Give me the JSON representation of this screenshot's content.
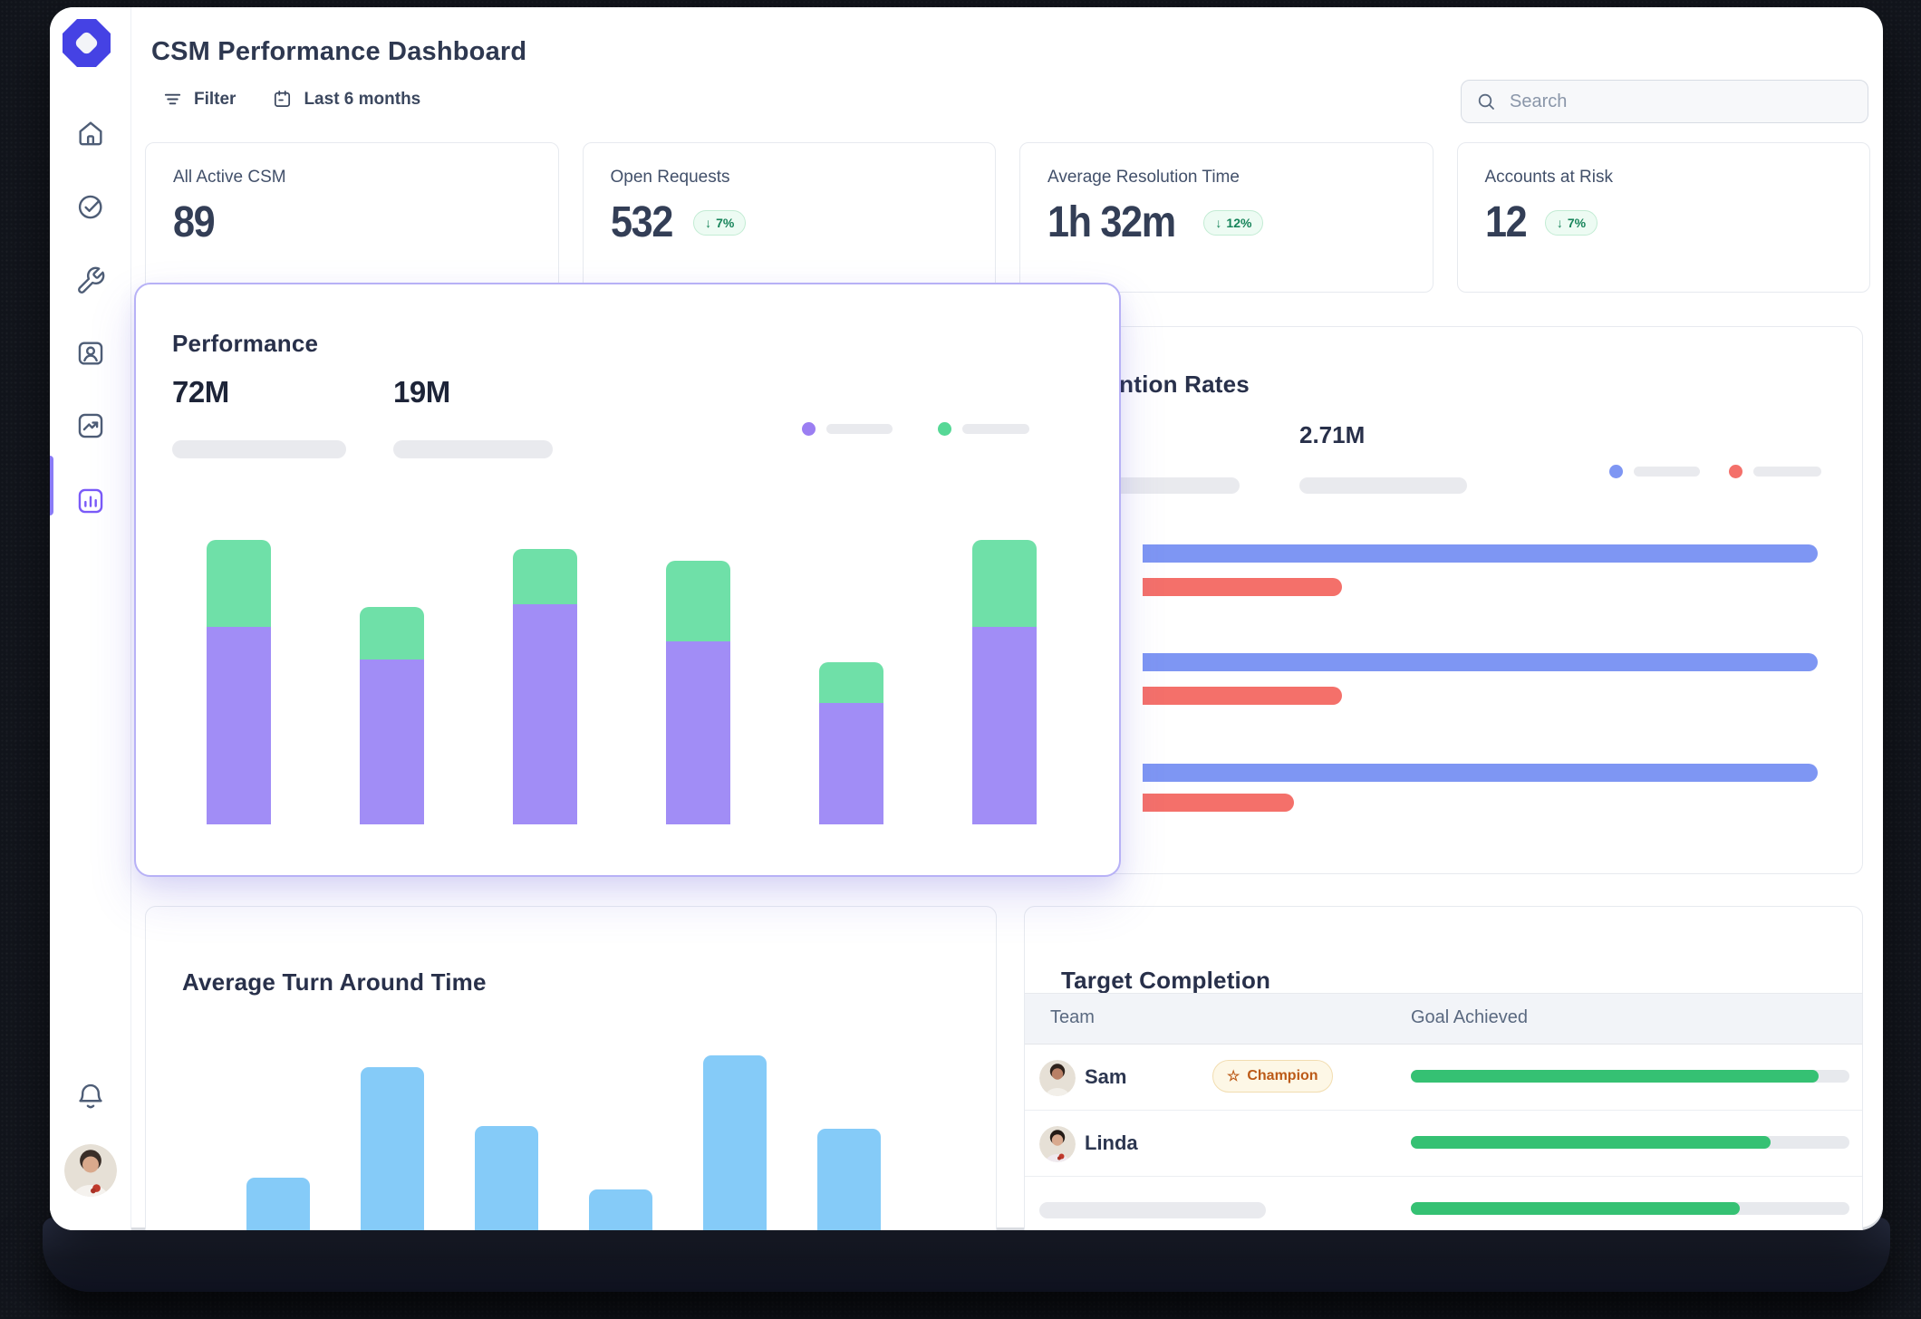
{
  "window_title": "CSM Performance Dashboard",
  "toolbar": {
    "filter": "Filter",
    "date_range": "Last 6 months"
  },
  "search": {
    "placeholder": "Search"
  },
  "kpis": [
    {
      "label": "All Active CSM",
      "value": "89",
      "badge": null
    },
    {
      "label": "Open Requests",
      "value": "532",
      "badge": "7%"
    },
    {
      "label": "Average Resolution Time",
      "value": "1h 32m",
      "badge": "12%"
    },
    {
      "label": "Accounts at Risk",
      "value": "12",
      "badge": "7%"
    }
  ],
  "performance_card": {
    "title": "Performance",
    "stat_primary": "72M",
    "stat_secondary": "19M",
    "legend": "two skeleton placeholder labels (purple, green)"
  },
  "retention_card": {
    "title": "Retention Rates",
    "stat": "2.71M",
    "legend": "two skeleton placeholder labels (blue, red)"
  },
  "turnaround_card": {
    "title": "Average Turn Around Time"
  },
  "target_card": {
    "title": "Target Completion",
    "columns": [
      "Team",
      "Goal Achieved"
    ],
    "rows": [
      {
        "name": "Sam",
        "badge": "Champion",
        "progress": 93
      },
      {
        "name": "Linda",
        "badge": null,
        "progress": 82
      },
      {
        "name": null,
        "badge": null,
        "progress": 75
      }
    ]
  },
  "colors": {
    "accent_purple": "#7a5af8",
    "logo_indigo": "#4542e4",
    "bar_purple": "#a18df6",
    "bar_green": "#6fe0a8",
    "hbar_blue": "#7e96f3",
    "hbar_red": "#f4706a",
    "tat_blue": "#85cbf8",
    "progress_green": "#35c173",
    "trend_badge_green": "#17845a",
    "champion_orange": "#bc5a17"
  },
  "chart_data": [
    {
      "id": "performance-stacked-bars",
      "type": "bar",
      "stacked": true,
      "orientation": "vertical",
      "title": "Performance",
      "categories": [
        "1",
        "2",
        "3",
        "4",
        "5",
        "6"
      ],
      "series": [
        {
          "name": "primary-purple",
          "color": "#a18df6",
          "values": [
            68,
            57,
            76,
            63,
            42,
            68
          ]
        },
        {
          "name": "secondary-green",
          "color": "#6fe0a8",
          "values": [
            30,
            18,
            19,
            28,
            14,
            30
          ]
        }
      ],
      "unit": "percent-of-chart-max",
      "axis_labels": false,
      "grid": false,
      "legend_position": "top-right"
    },
    {
      "id": "retention-grouped-hbars",
      "type": "bar",
      "orientation": "horizontal",
      "title": "Retention Rates",
      "categories": [
        "group 1",
        "group 2",
        "group 3"
      ],
      "series": [
        {
          "name": "blue",
          "color": "#7e96f3",
          "values": [
            100,
            100,
            100
          ]
        },
        {
          "name": "red",
          "color": "#f4706a",
          "values": [
            29.5,
            29.5,
            22.4
          ]
        }
      ],
      "unit": "percent-of-track",
      "axis_labels": false,
      "grid": false,
      "legend_position": "top-right"
    },
    {
      "id": "turnaround-bars",
      "type": "bar",
      "orientation": "vertical",
      "title": "Average Turn Around Time",
      "categories": [
        "1",
        "2",
        "3",
        "4",
        "5",
        "6"
      ],
      "values": [
        25,
        70,
        46,
        20,
        75,
        45
      ],
      "color": "#85cbf8",
      "unit": "relative (chart clipped at window bottom)",
      "axis_labels": false,
      "grid": false
    },
    {
      "id": "target-completion-progress",
      "type": "table",
      "title": "Target Completion",
      "columns": [
        "Team",
        "Goal Achieved"
      ],
      "rows": [
        "Sam",
        "Linda",
        "(skeleton)"
      ],
      "values_percent": [
        93,
        82,
        75
      ],
      "color": "#35c173"
    }
  ]
}
